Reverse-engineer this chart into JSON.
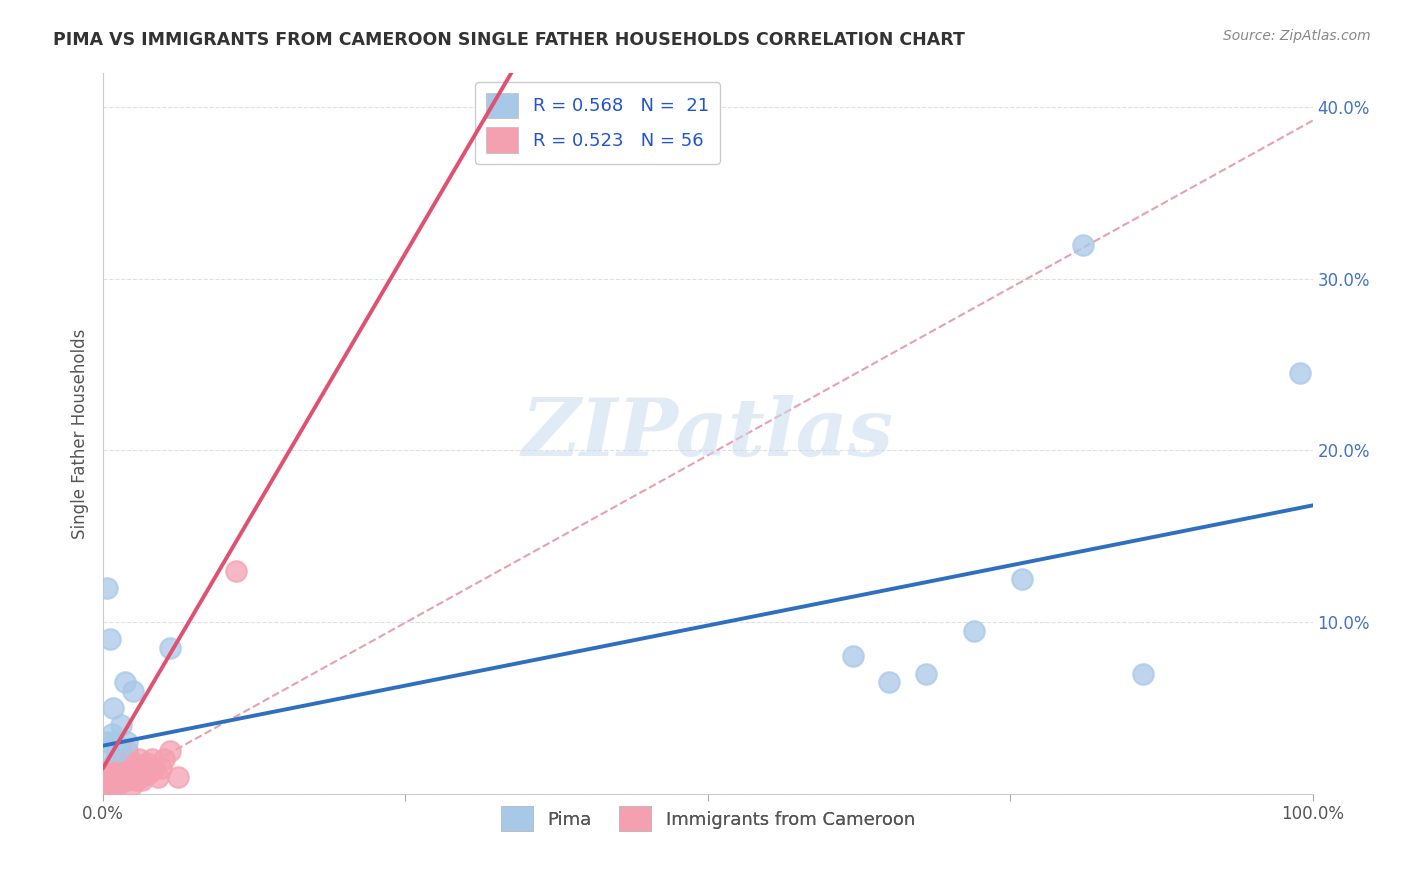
{
  "title": "PIMA VS IMMIGRANTS FROM CAMEROON SINGLE FATHER HOUSEHOLDS CORRELATION CHART",
  "source": "Source: ZipAtlas.com",
  "ylabel": "Single Father Households",
  "xlim": [
    0,
    1.0
  ],
  "ylim": [
    0,
    0.42
  ],
  "legend_r1": "R = 0.568",
  "legend_n1": "N =  21",
  "legend_r2": "R = 0.523",
  "legend_n2": "N = 56",
  "blue_scatter_color": "#A8C8E8",
  "pink_scatter_color": "#F4A0B0",
  "blue_line_color": "#2F6FBF",
  "pink_line_color": "#E05070",
  "dashed_line_color": "#E8A0B0",
  "watermark_color": "#D8E8F4",
  "pima_x": [
    0.003,
    0.005,
    0.007,
    0.008,
    0.01,
    0.012,
    0.015,
    0.018,
    0.02,
    0.025,
    0.003,
    0.006,
    0.055,
    0.62,
    0.65,
    0.68,
    0.72,
    0.76,
    0.81,
    0.86,
    0.99
  ],
  "pima_y": [
    0.03,
    0.025,
    0.035,
    0.05,
    0.03,
    0.025,
    0.04,
    0.065,
    0.03,
    0.06,
    0.12,
    0.09,
    0.085,
    0.08,
    0.065,
    0.07,
    0.095,
    0.125,
    0.32,
    0.07,
    0.245
  ],
  "cameroon_x": [
    0.002,
    0.003,
    0.003,
    0.004,
    0.004,
    0.005,
    0.005,
    0.005,
    0.006,
    0.006,
    0.007,
    0.007,
    0.008,
    0.008,
    0.009,
    0.009,
    0.01,
    0.01,
    0.01,
    0.01,
    0.011,
    0.012,
    0.012,
    0.013,
    0.014,
    0.015,
    0.015,
    0.016,
    0.017,
    0.018,
    0.019,
    0.02,
    0.02,
    0.021,
    0.022,
    0.023,
    0.024,
    0.025,
    0.026,
    0.027,
    0.028,
    0.03,
    0.031,
    0.032,
    0.033,
    0.035,
    0.036,
    0.038,
    0.04,
    0.042,
    0.045,
    0.048,
    0.05,
    0.055,
    0.062,
    0.11
  ],
  "cameroon_y": [
    0.005,
    0.008,
    0.003,
    0.01,
    0.005,
    0.012,
    0.008,
    0.003,
    0.015,
    0.006,
    0.01,
    0.004,
    0.012,
    0.006,
    0.015,
    0.008,
    0.018,
    0.01,
    0.005,
    0.003,
    0.02,
    0.015,
    0.008,
    0.01,
    0.018,
    0.025,
    0.012,
    0.015,
    0.008,
    0.02,
    0.01,
    0.025,
    0.008,
    0.012,
    0.01,
    0.015,
    0.005,
    0.018,
    0.012,
    0.008,
    0.015,
    0.02,
    0.01,
    0.008,
    0.015,
    0.012,
    0.018,
    0.012,
    0.02,
    0.015,
    0.01,
    0.015,
    0.02,
    0.025,
    0.01,
    0.13
  ]
}
